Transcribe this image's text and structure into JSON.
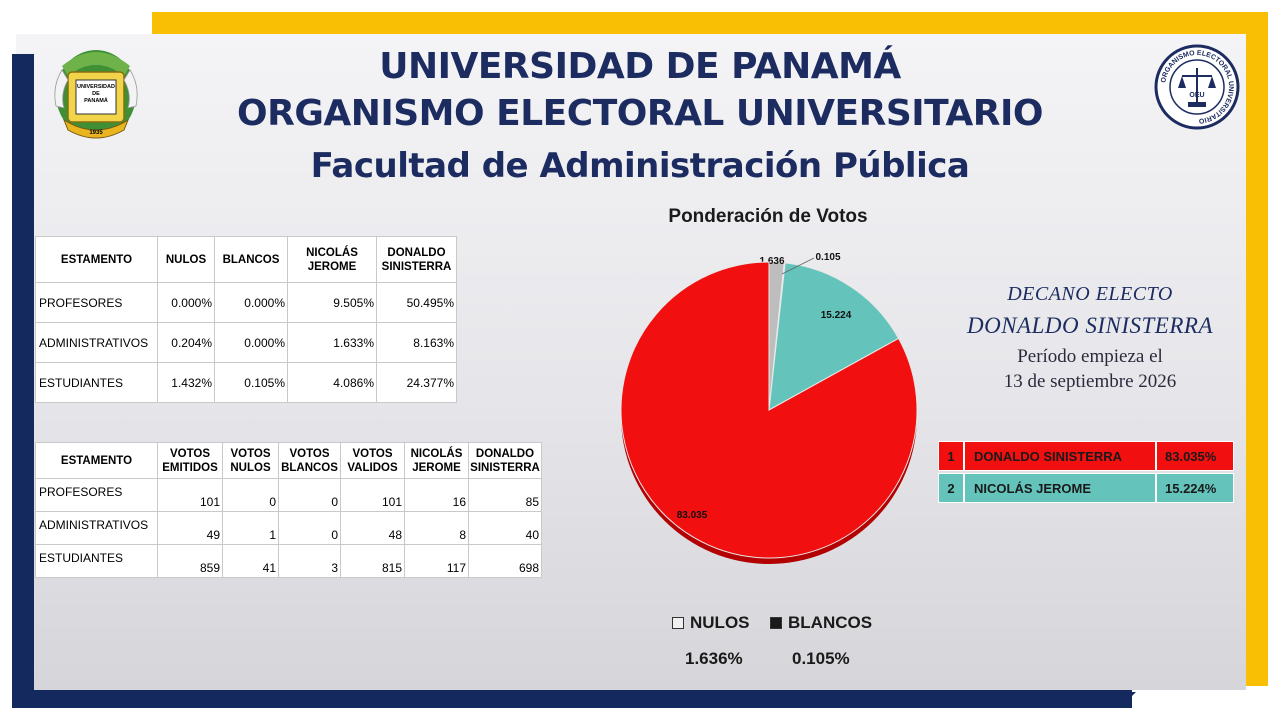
{
  "colors": {
    "navy": "#142a5e",
    "gold": "#f9bf05",
    "nulos": "#bdbdbd",
    "blancos": "#1a1a1a",
    "jerome": "#64c3bb",
    "sinisterra": "#f10f0f"
  },
  "header": {
    "line1": "UNIVERSIDAD DE PANAMÁ",
    "line2": "ORGANISMO ELECTORAL UNIVERSITARIO",
    "line3": "Facultad de Administración Pública"
  },
  "logo_left": {
    "text1": "UNIVERSIDAD",
    "text2": "DE",
    "text3": "PANAMÁ",
    "year": "1935"
  },
  "logo_right": {
    "ring_text": "ORGANISMO ELECTORAL UNIVERSITARIO",
    "initials": "OEU"
  },
  "table1": {
    "headers": [
      "ESTAMENTO",
      "NULOS",
      "BLANCOS",
      "NICOLÁS JEROME",
      "DONALDO SINISTERRA"
    ],
    "rows": [
      [
        "PROFESORES",
        "0.000%",
        "0.000%",
        "9.505%",
        "50.495%"
      ],
      [
        "ADMINISTRATIVOS",
        "0.204%",
        "0.000%",
        "1.633%",
        "8.163%"
      ],
      [
        "ESTUDIANTES",
        "1.432%",
        "0.105%",
        "4.086%",
        "24.377%"
      ]
    ]
  },
  "table2": {
    "headers": [
      "ESTAMENTO",
      "VOTOS EMITIDOS",
      "VOTOS NULOS",
      "VOTOS BLANCOS",
      "VOTOS VALIDOS",
      "NICOLÁS JEROME",
      "DONALDO SINISTERRA"
    ],
    "rows": [
      [
        "PROFESORES",
        "101",
        "0",
        "0",
        "101",
        "16",
        "85"
      ],
      [
        "ADMINISTRATIVOS",
        "49",
        "1",
        "0",
        "48",
        "8",
        "40"
      ],
      [
        "ESTUDIANTES",
        "859",
        "41",
        "3",
        "815",
        "117",
        "698"
      ]
    ]
  },
  "chart_data": {
    "type": "pie",
    "title": "Ponderación de Votos",
    "slices": [
      {
        "label": "NULOS",
        "value": 1.636,
        "label_text": "1.636",
        "color": "#bdbdbd"
      },
      {
        "label": "BLANCOS",
        "value": 0.105,
        "label_text": "0.105",
        "color": "#1a1a1a"
      },
      {
        "label": "NICOLÁS JEROME",
        "value": 15.224,
        "label_text": "15.224",
        "color": "#64c3bb"
      },
      {
        "label": "DONALDO SINISTERRA",
        "value": 83.035,
        "label_text": "83.035",
        "color": "#f10f0f"
      }
    ],
    "legend_placement": "bottom",
    "legend": [
      {
        "name": "NULOS",
        "value": "1.636%"
      },
      {
        "name": "BLANCOS",
        "value": "0.105%"
      }
    ]
  },
  "elect": {
    "line1": "DECANO ELECTO",
    "line2": "DONALDO SINISTERRA",
    "line3": "Período empieza el",
    "line4": "13 de septiembre 2026"
  },
  "ranking": [
    {
      "pos": "1",
      "name": "DONALDO SINISTERRA",
      "pct": "83.035%"
    },
    {
      "pos": "2",
      "name": "NICOLÁS JEROME",
      "pct": "15.224%"
    }
  ]
}
